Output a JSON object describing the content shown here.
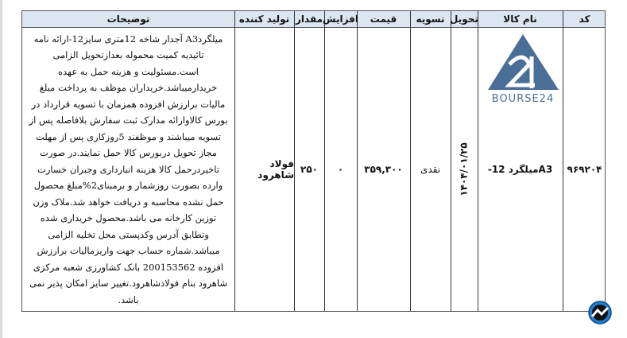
{
  "headers": {
    "code": "کد",
    "name": "نام کالا",
    "delivery": "تحویل",
    "settlement": "تسویه",
    "price": "قیمت",
    "increase": "افزایش",
    "quantity": "مقدار",
    "producer": "تولید کننده",
    "description": "توضیحات"
  },
  "row": {
    "code": "۹۶۹۲۰۴",
    "name": "A3میلگرد 12-",
    "delivery": "۱۴۰۴/۰۱/۲۵",
    "settlement": "نقدی",
    "price": "۳۵۹,۳۰۰",
    "increase": "۰",
    "quantity": "۲۵۰",
    "producer": "فولاد شاهرود",
    "description": "میلگردA3 آجدار شاخه 12متری سایز12-ارائه نامه تائیدیه کمیت محموله بعدازتحویل الزامی است.مسئولیت و هزینه حمل به عهده خریدارمیباشد.خریداران موظف به پرداخت مبلغ مالیات برارزش افزوده همزمان با تسویه قرارداد در بورس کالاوارائه مدارک ثبت سفارش بلافاصله پس از تسویه میباشند و موظفند 5روزکاری پس از مهلت مجاز تحویل دربورس کالا حمل نمایند.در صورت تاخیردرحمل کالا هزینه انبارداری وجبران خسارت وارده بصورت روزشمار و برمبنای2%مبلغ محصول حمل نشده محاسبه و دریافت خواهد شد.ملاک وزن توزین کارخانه می باشد.محصول خریداری شده وتطابق آدرس وکدپستی محل تخلیه الزامی میباشد.شماره حساب جهت واریزمالیات برارزش افزوده 200153562 بانک کشاورزی شعبه مرکزی شاهرود بنام فولادشاهرود.تغییر سایز امکان پذیر نمی باشد."
  },
  "logo": {
    "text": "BOURSE24",
    "color": "#4a6f96"
  },
  "colors": {
    "header_bg": "#dce6f1",
    "border": "#333333"
  },
  "icons": {
    "corner": "trend-chart-icon"
  }
}
